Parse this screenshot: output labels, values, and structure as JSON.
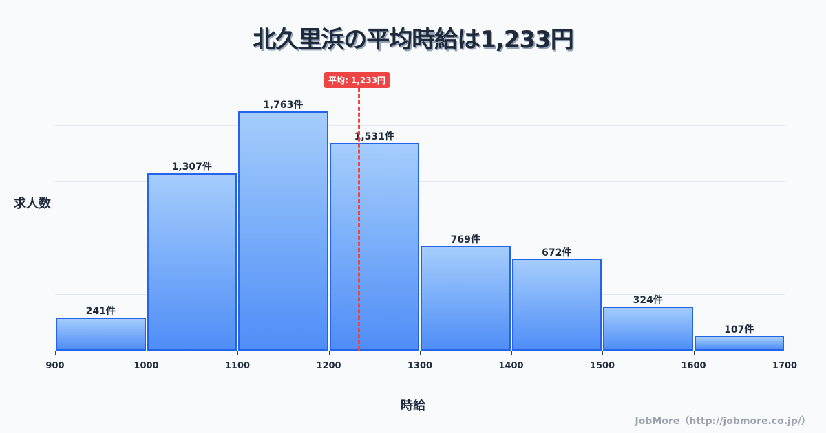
{
  "title": "北久里浜の平均時給は1,233円",
  "y_axis_label": "求人数",
  "x_axis_label": "時給",
  "credit": "JobMore（http://jobmore.co.jp/）",
  "average_badge": "平均: 1,233円",
  "colors": {
    "bar_border": "#2563eb",
    "bar_top": "#a5cdfc",
    "bar_bottom": "#4f8ef7",
    "average_line": "#ef4444",
    "title": "#1e293b"
  },
  "bars": [
    {
      "label": "241件"
    },
    {
      "label": "1,307件"
    },
    {
      "label": "1,763件"
    },
    {
      "label": "1,531件"
    },
    {
      "label": "769件"
    },
    {
      "label": "672件"
    },
    {
      "label": "324件"
    },
    {
      "label": "107件"
    }
  ],
  "ticks": [
    "900",
    "1000",
    "1100",
    "1200",
    "1300",
    "1400",
    "1500",
    "1600",
    "1700"
  ],
  "chart_data": {
    "type": "bar",
    "title": "北久里浜の平均時給は1,233円",
    "xlabel": "時給",
    "ylabel": "求人数",
    "categories": [
      "900-1000",
      "1000-1100",
      "1100-1200",
      "1200-1300",
      "1300-1400",
      "1400-1500",
      "1500-1600",
      "1600-1700"
    ],
    "bin_edges": [
      900,
      1000,
      1100,
      1200,
      1300,
      1400,
      1500,
      1600,
      1700
    ],
    "values": [
      241,
      1307,
      1763,
      1531,
      769,
      672,
      324,
      107
    ],
    "value_suffix": "件",
    "annotations": [
      {
        "type": "vline",
        "x": 1233,
        "label": "平均: 1,233円"
      }
    ],
    "grid": true,
    "ylim": [
      0,
      2077
    ]
  }
}
